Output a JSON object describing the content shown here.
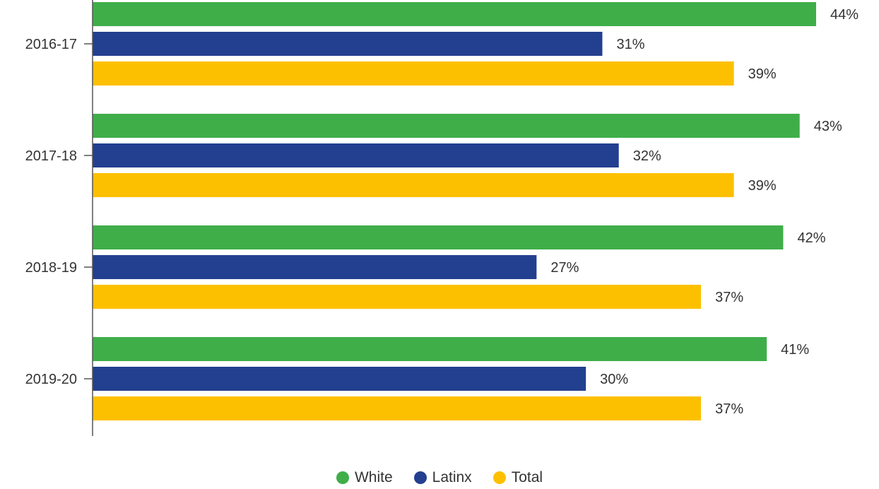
{
  "chart_data": {
    "type": "bar",
    "orientation": "horizontal",
    "categories": [
      "2016-17",
      "2017-18",
      "2018-19",
      "2019-20"
    ],
    "series": [
      {
        "name": "White",
        "color": "#3fae49",
        "values": [
          44,
          43,
          42,
          41
        ],
        "labels": [
          "44%",
          "43%",
          "42%",
          "41%"
        ]
      },
      {
        "name": "Latinx",
        "color": "#233f8f",
        "values": [
          31,
          32,
          27,
          30
        ],
        "labels": [
          "31%",
          "32%",
          "27%",
          "30%"
        ]
      },
      {
        "name": "Total",
        "color": "#fdc000",
        "values": [
          39,
          39,
          37,
          37
        ],
        "labels": [
          "39%",
          "39%",
          "37%",
          "37%"
        ]
      }
    ],
    "legend_position": "bottom-center",
    "grid": false
  }
}
